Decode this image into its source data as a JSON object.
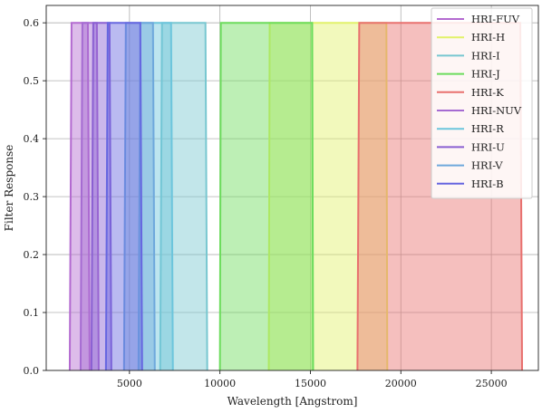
{
  "chart_data": {
    "type": "area",
    "title": "",
    "xlabel": "Wavelength [Angstrom]",
    "ylabel": "Filter Response",
    "xlim": [
      400,
      27600
    ],
    "ylim": [
      0,
      0.63
    ],
    "xticks": [
      5000,
      10000,
      15000,
      20000,
      25000
    ],
    "yticks": [
      0.0,
      0.1,
      0.2,
      0.3,
      0.4,
      0.5,
      0.6
    ],
    "xtick_labels": [
      "5000",
      "10000",
      "15000",
      "20000",
      "25000"
    ],
    "ytick_labels": [
      "0.0",
      "0.1",
      "0.2",
      "0.3",
      "0.4",
      "0.5",
      "0.6"
    ],
    "grid": true,
    "legend_position": "top-right",
    "series": [
      {
        "name": "HRI-FUV",
        "color": "#b36ad0",
        "x": [
          1700,
          1800,
          2700,
          2800
        ],
        "y": [
          0,
          0.6,
          0.6,
          0
        ]
      },
      {
        "name": "HRI-H",
        "color": "#e2f26a",
        "x": [
          12700,
          12750,
          19200,
          19250
        ],
        "y": [
          0,
          0.6,
          0.6,
          0
        ]
      },
      {
        "name": "HRI-I",
        "color": "#78c7d0",
        "x": [
          6700,
          6800,
          9200,
          9300
        ],
        "y": [
          0,
          0.6,
          0.6,
          0
        ]
      },
      {
        "name": "HRI-J",
        "color": "#6cdc5c",
        "x": [
          10000,
          10050,
          15100,
          15150
        ],
        "y": [
          0,
          0.6,
          0.6,
          0
        ]
      },
      {
        "name": "HRI-K",
        "color": "#e8706e",
        "x": [
          17600,
          17700,
          26600,
          26700
        ],
        "y": [
          0,
          0.6,
          0.6,
          0
        ]
      },
      {
        "name": "HRI-NUV",
        "color": "#a56bd2",
        "x": [
          2300,
          2400,
          3200,
          3300
        ],
        "y": [
          0,
          0.6,
          0.6,
          0
        ]
      },
      {
        "name": "HRI-R",
        "color": "#6cc5dc",
        "x": [
          5500,
          5600,
          7300,
          7400
        ],
        "y": [
          0,
          0.6,
          0.6,
          0
        ]
      },
      {
        "name": "HRI-U",
        "color": "#8a5fd2",
        "x": [
          2900,
          3000,
          3900,
          4000
        ],
        "y": [
          0,
          0.6,
          0.6,
          0
        ]
      },
      {
        "name": "HRI-V",
        "color": "#6ea8dc",
        "x": [
          4700,
          4800,
          6300,
          6400
        ],
        "y": [
          0,
          0.6,
          0.6,
          0
        ]
      },
      {
        "name": "HRI-B",
        "color": "#6666e0",
        "x": [
          3700,
          3800,
          5600,
          5700
        ],
        "y": [
          0,
          0.6,
          0.6,
          0
        ]
      }
    ]
  }
}
